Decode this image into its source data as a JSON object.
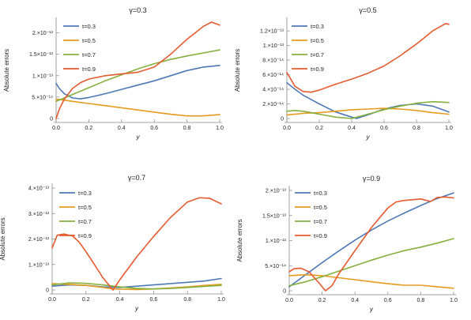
{
  "chart_data": [
    {
      "type": "line",
      "title": "γ=0.3",
      "xlabel": "y",
      "ylabel": "Absolute errors",
      "xlim": [
        0,
        1
      ],
      "ylim": [
        0,
        2.25e-13
      ],
      "xticks": [
        0.0,
        0.2,
        0.4,
        0.6,
        0.8,
        1.0
      ],
      "xtick_labels": [
        "0.0",
        "0.2",
        "0.4",
        "0.6",
        "0.8",
        "1.0"
      ],
      "yticks": [
        0,
        5e-14,
        1e-13,
        1.5e-13,
        2e-13
      ],
      "ytick_labels": [
        "0",
        "5.×10⁻¹⁴",
        "1.×10⁻¹³",
        "1.5×10⁻¹³",
        "2.×10⁻¹³"
      ],
      "legend_position": "top-left",
      "series": [
        {
          "name": "t=0.3",
          "color": "#4e79b4",
          "x": [
            0,
            0.02,
            0.05,
            0.1,
            0.15,
            0.2,
            0.3,
            0.4,
            0.5,
            0.6,
            0.7,
            0.8,
            0.9,
            1.0
          ],
          "y": [
            8.2e-14,
            7e-14,
            5.8e-14,
            4.8e-14,
            4.6e-14,
            4.9e-14,
            5.8e-14,
            6.8e-14,
            7.8e-14,
            8.8e-14,
            1e-13,
            1.12e-13,
            1.2e-13,
            1.24e-13
          ]
        },
        {
          "name": "t=0.5",
          "color": "#e69b1f",
          "x": [
            0,
            0.05,
            0.1,
            0.2,
            0.3,
            0.4,
            0.5,
            0.6,
            0.7,
            0.8,
            0.9,
            1.0
          ],
          "y": [
            4.5e-14,
            4.3e-14,
            4e-14,
            3.5e-14,
            3e-14,
            2.5e-14,
            2e-14,
            1.5e-14,
            1e-14,
            6e-15,
            6e-15,
            9e-15
          ]
        },
        {
          "name": "t=0.7",
          "color": "#86b03c",
          "x": [
            0,
            0.05,
            0.1,
            0.2,
            0.3,
            0.4,
            0.5,
            0.6,
            0.7,
            0.8,
            0.9,
            1.0
          ],
          "y": [
            4e-14,
            4.8e-14,
            5.6e-14,
            7.2e-14,
            8.8e-14,
            1.02e-13,
            1.16e-13,
            1.28e-13,
            1.38e-13,
            1.46e-13,
            1.53e-13,
            1.6e-13
          ]
        },
        {
          "name": "t=0.9",
          "color": "#e55b2f",
          "x": [
            0,
            0.02,
            0.05,
            0.1,
            0.15,
            0.2,
            0.3,
            0.4,
            0.5,
            0.6,
            0.7,
            0.8,
            0.9,
            0.95,
            1.0
          ],
          "y": [
            0,
            2.2e-14,
            4.5e-14,
            7e-14,
            8.4e-14,
            9.2e-14,
            1e-13,
            1.04e-13,
            1.08e-13,
            1.2e-13,
            1.5e-13,
            1.85e-13,
            2.15e-13,
            2.25e-13,
            2.18e-13
          ]
        }
      ]
    },
    {
      "type": "line",
      "title": "γ=0.5",
      "xlabel": "y",
      "ylabel": "Absolute errors",
      "xlim": [
        0,
        1
      ],
      "ylim": [
        0,
        1.32e-13
      ],
      "xticks": [
        0.0,
        0.2,
        0.4,
        0.6,
        0.8,
        1.0
      ],
      "xtick_labels": [
        "0.0",
        "0.2",
        "0.4",
        "0.6",
        "0.8",
        "1.0"
      ],
      "yticks": [
        0,
        2e-14,
        4e-14,
        6e-14,
        8e-14,
        1e-13,
        1.2e-13
      ],
      "ytick_labels": [
        "0",
        "2.×10⁻¹⁴",
        "4.×10⁻¹⁴",
        "6.×10⁻¹⁴",
        "8.×10⁻¹⁴",
        "1.×10⁻¹³",
        "1.2×10⁻¹³"
      ],
      "legend_position": "top-left",
      "series": [
        {
          "name": "t=0.3",
          "color": "#4e79b4",
          "x": [
            0,
            0.05,
            0.1,
            0.2,
            0.3,
            0.4,
            0.43,
            0.5,
            0.6,
            0.7,
            0.8,
            0.9,
            1.0
          ],
          "y": [
            4.9e-14,
            4e-14,
            3.2e-14,
            2e-14,
            9e-15,
            2e-15,
            0,
            5e-15,
            1.3e-14,
            1.8e-14,
            2e-14,
            1.7e-14,
            9e-15
          ]
        },
        {
          "name": "t=0.5",
          "color": "#e69b1f",
          "x": [
            0,
            0.1,
            0.2,
            0.3,
            0.4,
            0.5,
            0.6,
            0.7,
            0.8,
            0.9,
            1.0
          ],
          "y": [
            5e-15,
            7e-15,
            8e-15,
            1e-14,
            1.2e-14,
            1.3e-14,
            1.4e-14,
            1.3e-14,
            1.1e-14,
            8e-15,
            6e-15
          ]
        },
        {
          "name": "t=0.7",
          "color": "#86b03c",
          "x": [
            0,
            0.05,
            0.1,
            0.15,
            0.2,
            0.3,
            0.4,
            0.5,
            0.6,
            0.7,
            0.8,
            0.9,
            1.0
          ],
          "y": [
            1e-14,
            1.1e-14,
            1e-14,
            8e-15,
            6e-15,
            2e-15,
            0,
            6e-15,
            1.2e-14,
            1.7e-14,
            2.1e-14,
            2.3e-14,
            2.2e-14
          ]
        },
        {
          "name": "t=0.9",
          "color": "#e55b2f",
          "x": [
            0,
            0.05,
            0.1,
            0.15,
            0.2,
            0.3,
            0.4,
            0.5,
            0.6,
            0.7,
            0.8,
            0.9,
            0.98,
            1.0
          ],
          "y": [
            6.3e-14,
            4.4e-14,
            3.7e-14,
            3.6e-14,
            3.9e-14,
            4.7e-14,
            5.4e-14,
            6.2e-14,
            7.2e-14,
            8.6e-14,
            1.02e-13,
            1.2e-13,
            1.3e-13,
            1.29e-13
          ]
        }
      ]
    },
    {
      "type": "line",
      "title": "γ=0.7",
      "xlabel": "y",
      "ylabel": "Absolute errors",
      "xlim": [
        0,
        1
      ],
      "ylim": [
        0,
        4e-13
      ],
      "xticks": [
        0.0,
        0.2,
        0.4,
        0.6,
        0.8,
        1.0
      ],
      "xtick_labels": [
        "0.0",
        "0.2",
        "0.4",
        "0.6",
        "0.8",
        "1.0"
      ],
      "yticks": [
        0,
        1e-13,
        2e-13,
        3e-13,
        4e-13
      ],
      "ytick_labels": [
        "0",
        "1.×10⁻¹³",
        "2.×10⁻¹³",
        "3.×10⁻¹³",
        "4.×10⁻¹³"
      ],
      "legend_position": "top-left",
      "series": [
        {
          "name": "t=0.3",
          "color": "#4e79b4",
          "x": [
            0,
            0.1,
            0.2,
            0.3,
            0.4,
            0.5,
            0.6,
            0.7,
            0.8,
            0.9,
            1.0
          ],
          "y": [
            1.5e-14,
            2e-14,
            1.8e-14,
            1.2e-14,
            1e-14,
            1.5e-14,
            2e-14,
            2.5e-14,
            3e-14,
            3.5e-14,
            4.5e-14
          ]
        },
        {
          "name": "t=0.5",
          "color": "#e69b1f",
          "x": [
            0,
            0.1,
            0.2,
            0.3,
            0.35,
            0.4,
            0.5,
            0.6,
            0.7,
            0.8,
            0.9,
            1.0
          ],
          "y": [
            2.5e-14,
            2.2e-14,
            1.8e-14,
            1e-14,
            5e-15,
            3e-15,
            2e-15,
            4e-15,
            8e-15,
            1.2e-14,
            1.8e-14,
            2.2e-14
          ]
        },
        {
          "name": "t=0.7",
          "color": "#86b03c",
          "x": [
            0,
            0.1,
            0.2,
            0.3,
            0.4,
            0.5,
            0.6,
            0.7,
            0.8,
            0.9,
            1.0
          ],
          "y": [
            2e-14,
            2.8e-14,
            2.6e-14,
            2e-14,
            1.2e-14,
            6e-15,
            4e-15,
            6e-15,
            1e-14,
            1.4e-14,
            1.8e-14
          ]
        },
        {
          "name": "t=0.9",
          "color": "#e55b2f",
          "x": [
            0,
            0.03,
            0.07,
            0.12,
            0.16,
            0.2,
            0.25,
            0.3,
            0.36,
            0.4,
            0.5,
            0.6,
            0.7,
            0.8,
            0.87,
            0.93,
            1.0
          ],
          "y": [
            1.65e-13,
            2.15e-13,
            2.2e-13,
            2.12e-13,
            1.88e-13,
            1.5e-13,
            1e-13,
            4.8e-14,
            0,
            4e-14,
            1.3e-13,
            2.1e-13,
            2.85e-13,
            3.45e-13,
            3.62e-13,
            3.6e-13,
            3.38e-13
          ]
        }
      ]
    },
    {
      "type": "line",
      "title": "γ=0.9",
      "xlabel": "y",
      "ylabel": "Absolute errors",
      "xlim": [
        0,
        1
      ],
      "ylim": [
        0,
        2e-13
      ],
      "xticks": [
        0.0,
        0.2,
        0.4,
        0.6,
        0.8,
        1.0
      ],
      "xtick_labels": [
        "0.0",
        "0.2",
        "0.4",
        "0.6",
        "0.8",
        "1.0"
      ],
      "yticks": [
        0,
        5e-14,
        1e-13,
        1.5e-13,
        2e-13
      ],
      "ytick_labels": [
        "0",
        "5.×10⁻¹⁴",
        "1.×10⁻¹³",
        "1.5×10⁻¹³",
        "2.×10⁻¹³"
      ],
      "legend_position": "top-left",
      "series": [
        {
          "name": "t=0.3",
          "color": "#4e79b4",
          "x": [
            0,
            0.1,
            0.2,
            0.3,
            0.4,
            0.5,
            0.6,
            0.7,
            0.8,
            0.9,
            1.0
          ],
          "y": [
            8e-15,
            3.2e-14,
            5.6e-14,
            7.9e-14,
            1.01e-13,
            1.21e-13,
            1.39e-13,
            1.55e-13,
            1.7e-13,
            1.84e-13,
            1.95e-13
          ]
        },
        {
          "name": "t=0.5",
          "color": "#e69b1f",
          "x": [
            0,
            0.1,
            0.2,
            0.3,
            0.4,
            0.5,
            0.6,
            0.7,
            0.8,
            0.9,
            1.0
          ],
          "y": [
            3e-14,
            3.2e-14,
            3e-14,
            2.6e-14,
            2.2e-14,
            1.8e-14,
            1.4e-14,
            1.1e-14,
            1.1e-14,
            8e-15,
            5e-15
          ]
        },
        {
          "name": "t=0.7",
          "color": "#86b03c",
          "x": [
            0,
            0.1,
            0.2,
            0.3,
            0.4,
            0.5,
            0.6,
            0.7,
            0.8,
            0.9,
            1.0
          ],
          "y": [
            1e-14,
            1.8e-14,
            2.8e-14,
            3.9e-14,
            5e-14,
            6.1e-14,
            7.1e-14,
            8e-14,
            8.7e-14,
            9.5e-14,
            1.04e-13
          ]
        },
        {
          "name": "t=0.9",
          "color": "#e55b2f",
          "x": [
            0,
            0.03,
            0.07,
            0.12,
            0.18,
            0.22,
            0.26,
            0.3,
            0.4,
            0.5,
            0.6,
            0.65,
            0.7,
            0.8,
            0.86,
            0.9,
            0.95,
            1.0
          ],
          "y": [
            3.8e-14,
            4.4e-14,
            4.5e-14,
            3.8e-14,
            1.6e-14,
            0,
            1e-14,
            3.3e-14,
            8e-14,
            1.26e-13,
            1.65e-13,
            1.77e-13,
            1.8e-13,
            1.83e-13,
            1.78e-13,
            1.86e-13,
            1.87e-13,
            1.85e-13
          ]
        }
      ]
    }
  ]
}
